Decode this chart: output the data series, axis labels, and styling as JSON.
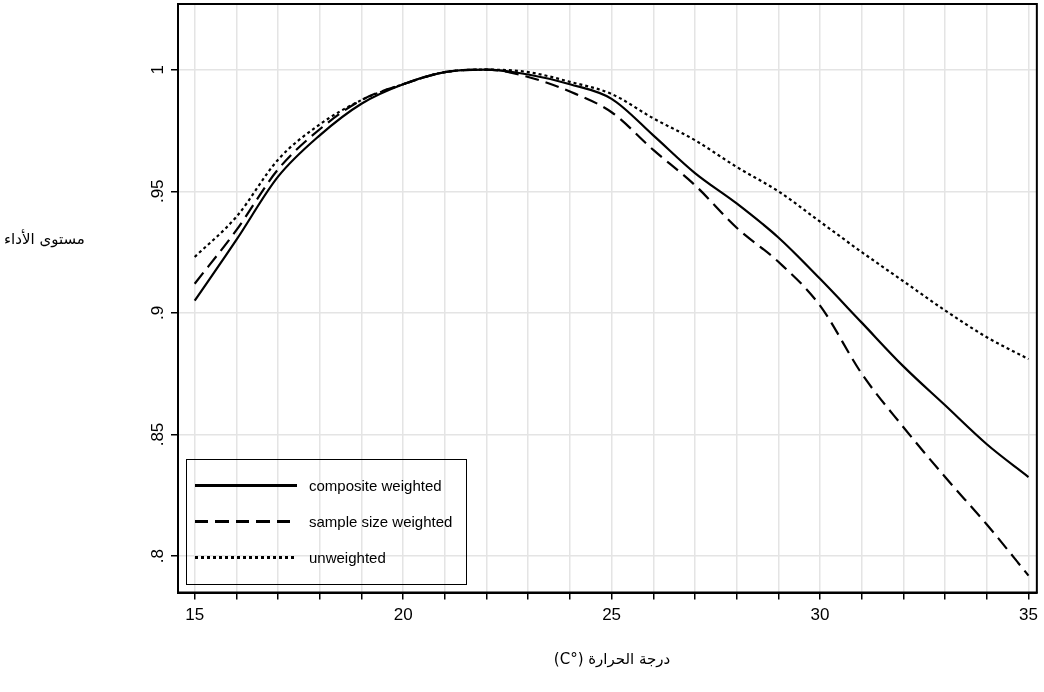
{
  "chart_data": {
    "type": "line",
    "xlabel": "درجة الحرارة (°C)",
    "ylabel": "مستوى الأداء",
    "x": [
      15,
      16,
      17,
      18,
      19,
      20,
      21,
      22,
      23,
      24,
      25,
      26,
      27,
      28,
      29,
      30,
      31,
      32,
      33,
      34,
      35
    ],
    "series": [
      {
        "name": "composite weighted",
        "color": "#000000",
        "line_style": "solid",
        "values": [
          0.905,
          0.93,
          0.956,
          0.973,
          0.986,
          0.994,
          0.999,
          1.0,
          0.998,
          0.994,
          0.988,
          0.973,
          0.9575,
          0.945,
          0.931,
          0.914,
          0.896,
          0.878,
          0.862,
          0.846,
          0.8325
        ]
      },
      {
        "name": "sample size weighted",
        "color": "#000000",
        "line_style": "dashed",
        "values": [
          0.912,
          0.934,
          0.959,
          0.9755,
          0.9875,
          0.994,
          0.999,
          1.0,
          0.997,
          0.991,
          0.9825,
          0.967,
          0.9525,
          0.935,
          0.921,
          0.903,
          0.875,
          0.853,
          0.8325,
          0.813,
          0.792
        ]
      },
      {
        "name": "unweighted",
        "color": "#000000",
        "line_style": "dotted",
        "values": [
          0.923,
          0.9395,
          0.963,
          0.9775,
          0.9875,
          0.994,
          0.999,
          1.0,
          0.999,
          0.995,
          0.99,
          0.98,
          0.971,
          0.96,
          0.95,
          0.9375,
          0.925,
          0.913,
          0.901,
          0.89,
          0.881
        ]
      }
    ],
    "xlim": [
      14.6,
      35.2
    ],
    "ylim": [
      0.785,
      1.027
    ],
    "xticks": [
      15,
      {
        "value": 16,
        "label": null
      },
      {
        "value": 17,
        "label": null
      },
      {
        "value": 18,
        "label": null
      },
      {
        "value": 19,
        "label": null
      },
      20,
      {
        "value": 21,
        "label": null
      },
      {
        "value": 22,
        "label": null
      },
      {
        "value": 23,
        "label": null
      },
      {
        "value": 24,
        "label": null
      },
      25,
      {
        "value": 26,
        "label": null
      },
      {
        "value": 27,
        "label": null
      },
      {
        "value": 28,
        "label": null
      },
      {
        "value": 29,
        "label": null
      },
      30,
      {
        "value": 31,
        "label": null
      },
      {
        "value": 32,
        "label": null
      },
      {
        "value": 33,
        "label": null
      },
      {
        "value": 34,
        "label": null
      },
      35
    ],
    "yticks": [
      {
        "value": 0.8,
        "label": ".8"
      },
      {
        "value": 0.85,
        "label": ".85"
      },
      {
        "value": 0.9,
        "label": ".9"
      },
      {
        "value": 0.95,
        "label": ".95"
      },
      1
    ],
    "grid": true,
    "legend": "bottom left",
    "marker": "none"
  }
}
